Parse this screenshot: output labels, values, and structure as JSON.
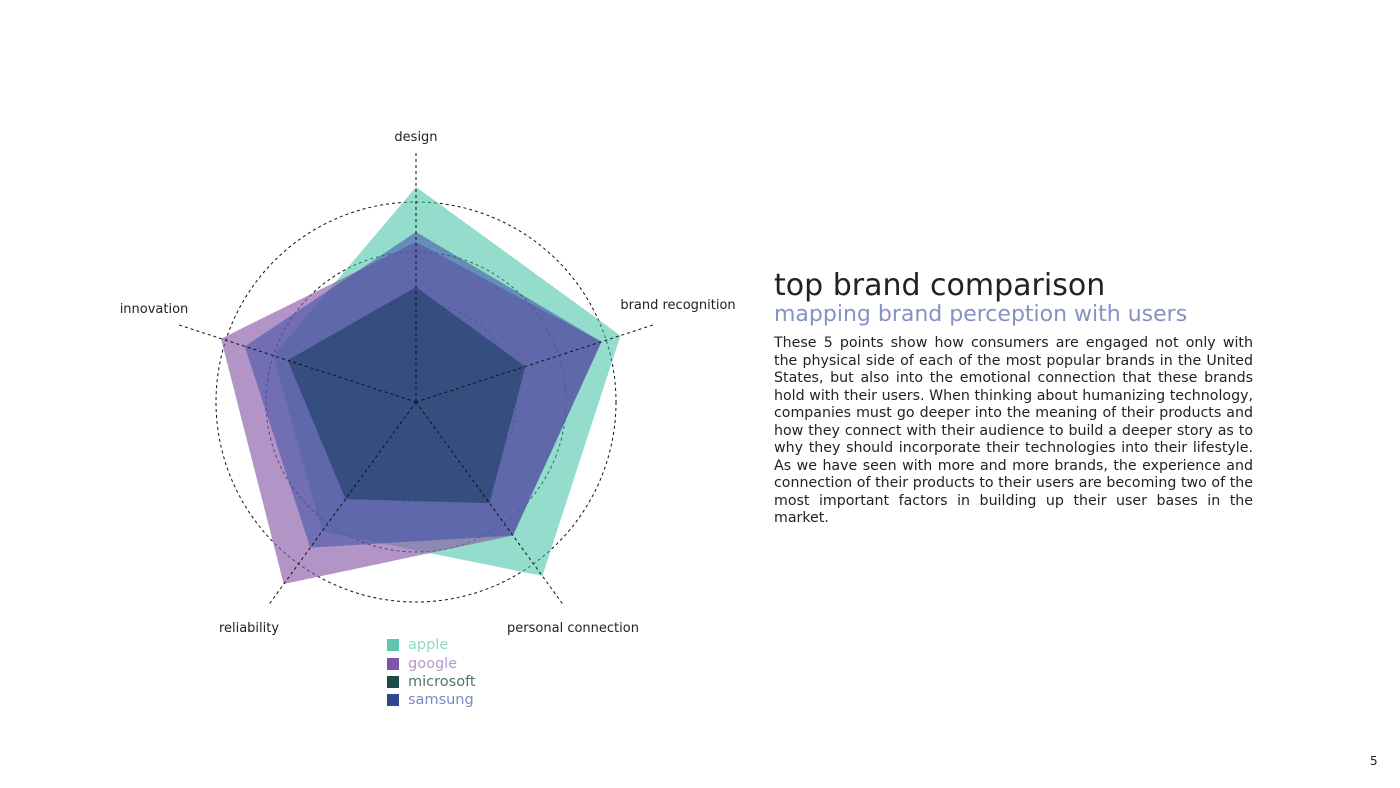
{
  "header": {
    "title": "top brand comparison",
    "subtitle": "mapping brand perception with users"
  },
  "body_text": "These 5 points show how consumers are engaged not only with the physical side of each of the most popular brands in the United States, but also into the emotional connection that these brands hold with their users. When thinking about humanizing technology, companies must go deeper into the meaning of their products and how they connect with their audience to build a deeper story as to why they should incorporate their technologies into their lifestyle. As we have seen with more and more brands, the experience and connection of their products to their users are becoming two of the most important factors in building up their user bases in the market.",
  "page_number": "5",
  "chart_data": {
    "type": "radar",
    "axes": [
      "design",
      "brand recognition",
      "personal connection",
      "reliability",
      "innovation"
    ],
    "rings": [
      1,
      2,
      3,
      4
    ],
    "range": [
      0,
      4
    ],
    "grid": true,
    "legend_placement": "bottom",
    "series": [
      {
        "name": "apple",
        "values": [
          4.3,
          4.3,
          4.3,
          3.2,
          3.0
        ],
        "color": "#3cc0a3",
        "opacity": 0.55
      },
      {
        "name": "google",
        "values": [
          3.2,
          3.9,
          3.3,
          4.5,
          4.1
        ],
        "color": "#8a5aa8",
        "opacity": 0.65
      },
      {
        "name": "microsoft",
        "values": [
          2.3,
          2.3,
          2.5,
          2.4,
          2.7
        ],
        "color": "#1a3d3b",
        "opacity": 0.8
      },
      {
        "name": "samsung",
        "values": [
          3.4,
          3.9,
          3.3,
          3.6,
          3.6
        ],
        "color": "#3a4fa6",
        "opacity": 0.55
      }
    ],
    "legend": [
      {
        "label": "apple",
        "swatch": "#5cc6ae",
        "text_color": "#8fd8c8"
      },
      {
        "label": "google",
        "swatch": "#7c56a8",
        "text_color": "#b596cf"
      },
      {
        "label": "microsoft",
        "swatch": "#1f4a47",
        "text_color": "#4f7472"
      },
      {
        "label": "samsung",
        "swatch": "#32468e",
        "text_color": "#7988c4"
      }
    ]
  }
}
